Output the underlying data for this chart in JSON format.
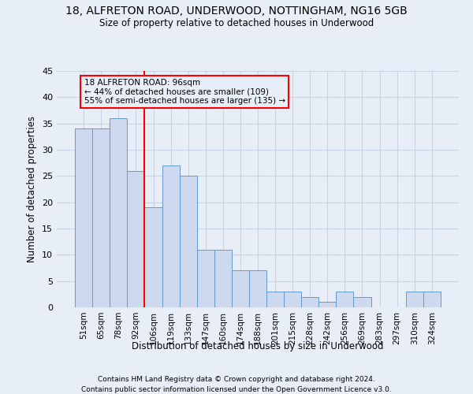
{
  "title1": "18, ALFRETON ROAD, UNDERWOOD, NOTTINGHAM, NG16 5GB",
  "title2": "Size of property relative to detached houses in Underwood",
  "xlabel": "Distribution of detached houses by size in Underwood",
  "ylabel": "Number of detached properties",
  "footnote1": "Contains HM Land Registry data © Crown copyright and database right 2024.",
  "footnote2": "Contains public sector information licensed under the Open Government Licence v3.0.",
  "annotation_line1": "18 ALFRETON ROAD: 96sqm",
  "annotation_line2": "← 44% of detached houses are smaller (109)",
  "annotation_line3": "55% of semi-detached houses are larger (135) →",
  "bar_labels": [
    "51sqm",
    "65sqm",
    "78sqm",
    "92sqm",
    "106sqm",
    "119sqm",
    "133sqm",
    "147sqm",
    "160sqm",
    "174sqm",
    "188sqm",
    "201sqm",
    "215sqm",
    "228sqm",
    "242sqm",
    "256sqm",
    "269sqm",
    "283sqm",
    "297sqm",
    "310sqm",
    "324sqm"
  ],
  "bar_values": [
    34,
    34,
    36,
    26,
    19,
    27,
    25,
    11,
    11,
    7,
    7,
    3,
    3,
    2,
    1,
    3,
    2,
    0,
    0,
    3,
    3
  ],
  "bar_color": "#ccd9ee",
  "bar_edge_color": "#6699cc",
  "vline_x_index": 3.5,
  "vline_color": "red",
  "ylim": [
    0,
    45
  ],
  "yticks": [
    0,
    5,
    10,
    15,
    20,
    25,
    30,
    35,
    40,
    45
  ],
  "bg_color": "#e8eef8",
  "grid_color": "#d0d8e8",
  "title1_fontsize": 10,
  "title2_fontsize": 9
}
